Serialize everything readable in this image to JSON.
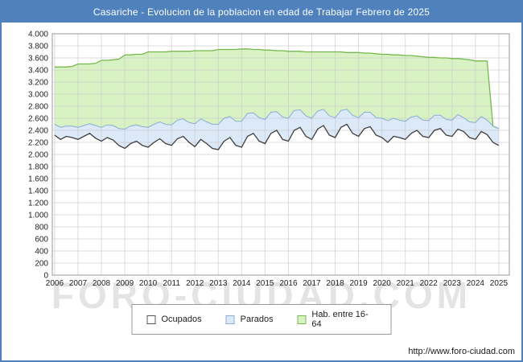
{
  "title_bar": {
    "text": "Casariche - Evolucion de la poblacion en edad de Trabajar Febrero de 2025",
    "bg": "#4f81bd"
  },
  "watermark": "FORO-CIUDAD.COM",
  "footer": {
    "url": "http://www.foro-ciudad.com"
  },
  "legend": {
    "items": [
      {
        "label": "Ocupados",
        "fill": "#ffffff",
        "border": "#555555"
      },
      {
        "label": "Parados",
        "fill": "#dbe9f8",
        "border": "#8aadd6"
      },
      {
        "label": "Hab. entre 16-64",
        "fill": "#d9f2c4",
        "border": "#77b84e"
      }
    ]
  },
  "chart_data": {
    "type": "area",
    "title": "Casariche - Evolucion de la poblacion en edad de Trabajar Febrero de 2025",
    "xlabel": "",
    "ylabel": "",
    "ylim": [
      0,
      4000
    ],
    "y_step": 200,
    "xlim": [
      2005.9,
      2025.45
    ],
    "x_start": 2006.0,
    "x_step": 0.25,
    "grid": true,
    "legend_position": "bottom",
    "x_ticks": [
      "2006",
      "2007",
      "2008",
      "2009",
      "2010",
      "2011",
      "2012",
      "2013",
      "2014",
      "2015",
      "2016",
      "2017",
      "2018",
      "2019",
      "2020",
      "2021",
      "2022",
      "2023",
      "2024",
      "2025"
    ],
    "y_ticks": [
      "0",
      "200",
      "400",
      "600",
      "800",
      "1.000",
      "1.200",
      "1.400",
      "1.600",
      "1.800",
      "2.000",
      "2.200",
      "2.400",
      "2.600",
      "2.800",
      "3.000",
      "3.200",
      "3.400",
      "3.600",
      "3.800",
      "4.000"
    ],
    "series": [
      {
        "name": "Ocupados",
        "role": "base-line",
        "values": [
          2320,
          2250,
          2300,
          2280,
          2250,
          2300,
          2350,
          2270,
          2220,
          2280,
          2240,
          2150,
          2100,
          2180,
          2220,
          2150,
          2120,
          2200,
          2260,
          2180,
          2150,
          2260,
          2300,
          2200,
          2130,
          2250,
          2180,
          2100,
          2080,
          2220,
          2280,
          2150,
          2120,
          2300,
          2350,
          2220,
          2180,
          2350,
          2400,
          2250,
          2220,
          2400,
          2450,
          2300,
          2250,
          2420,
          2480,
          2320,
          2280,
          2450,
          2500,
          2350,
          2300,
          2430,
          2460,
          2320,
          2280,
          2200,
          2300,
          2280,
          2250,
          2350,
          2400,
          2300,
          2280,
          2400,
          2430,
          2320,
          2300,
          2420,
          2380,
          2280,
          2250,
          2380,
          2330,
          2200,
          2150
        ]
      },
      {
        "name": "Parados",
        "role": "stacked-on-ocupados",
        "values": [
          180,
          200,
          170,
          190,
          200,
          180,
          160,
          210,
          230,
          210,
          240,
          280,
          320,
          290,
          270,
          310,
          330,
          300,
          280,
          320,
          340,
          310,
          290,
          330,
          380,
          340,
          360,
          400,
          420,
          380,
          350,
          400,
          430,
          380,
          340,
          390,
          400,
          350,
          310,
          370,
          380,
          330,
          290,
          340,
          350,
          300,
          270,
          320,
          330,
          280,
          250,
          300,
          310,
          270,
          240,
          290,
          320,
          360,
          300,
          290,
          300,
          270,
          240,
          270,
          280,
          250,
          220,
          260,
          270,
          240,
          230,
          260,
          280,
          250,
          240,
          270,
          280
        ]
      },
      {
        "name": "Hab. entre 16-64",
        "role": "absolute-top",
        "values": [
          3450,
          3450,
          3450,
          3460,
          3500,
          3500,
          3500,
          3510,
          3560,
          3560,
          3570,
          3580,
          3650,
          3650,
          3660,
          3660,
          3700,
          3700,
          3700,
          3700,
          3710,
          3710,
          3710,
          3710,
          3720,
          3720,
          3720,
          3720,
          3740,
          3740,
          3740,
          3740,
          3750,
          3750,
          3740,
          3740,
          3730,
          3730,
          3720,
          3720,
          3710,
          3710,
          3710,
          3700,
          3700,
          3700,
          3700,
          3700,
          3700,
          3700,
          3690,
          3690,
          3690,
          3680,
          3680,
          3670,
          3660,
          3660,
          3650,
          3650,
          3640,
          3640,
          3630,
          3620,
          3610,
          3610,
          3600,
          3600,
          3590,
          3590,
          3580,
          3570,
          3550,
          3550,
          3550,
          2470,
          2430
        ]
      }
    ],
    "style": {
      "grid": "#c9c9c9",
      "border": "#9a9a9a",
      "tick_color": "#222222",
      "hab_fill": "#d9f2c4",
      "hab_line": "#77b84e",
      "parados_fill": "#dbe9f8",
      "parados_line": "#8aadd6",
      "ocupados_line": "#3f3f3f"
    }
  }
}
